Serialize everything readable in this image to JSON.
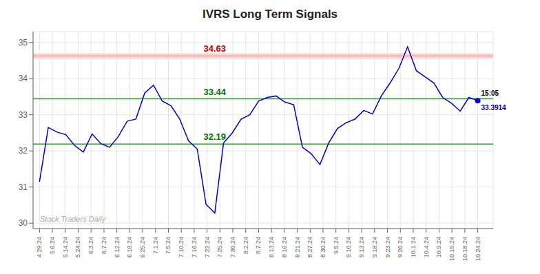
{
  "chart_data": {
    "type": "line",
    "title": "IVRS Long Term Signals",
    "x": [
      0,
      0.68,
      1.36,
      2.04,
      2.72,
      3.4,
      4.08,
      4.76,
      5.44,
      6.12,
      6.8,
      7.48,
      8.16,
      8.84,
      9.52,
      10.2,
      10.88,
      11.56,
      12.24,
      12.92,
      13.6,
      14.28,
      14.96,
      15.64,
      16.32,
      17,
      17.68,
      18.36,
      19.04,
      19.72,
      20.4,
      21.08,
      21.76,
      22.44,
      23.12,
      23.8,
      24.48,
      25.16,
      25.84,
      26.52,
      27.2,
      27.88,
      28.56,
      29.24,
      29.92,
      30.6,
      31.28,
      31.96,
      32.64,
      33.32,
      34
    ],
    "values": [
      31.15,
      32.65,
      32.52,
      32.45,
      32.15,
      31.97,
      32.47,
      32.2,
      32.1,
      32.4,
      32.82,
      32.88,
      33.6,
      33.82,
      33.38,
      33.25,
      32.88,
      32.28,
      32.05,
      30.52,
      30.28,
      32.22,
      32.5,
      32.88,
      33.0,
      33.38,
      33.48,
      33.52,
      33.35,
      33.28,
      32.1,
      31.92,
      31.62,
      32.22,
      32.62,
      32.78,
      32.88,
      33.12,
      33.02,
      33.52,
      33.88,
      34.28,
      34.88,
      34.22,
      34.05,
      33.88,
      33.48,
      33.32,
      33.1,
      33.48,
      33.3914
    ],
    "color": "#0000cc",
    "xlim": [
      -0.5,
      35.2
    ],
    "xticks": [
      {
        "value": 0,
        "label": "4.29.24"
      },
      {
        "value": 1,
        "label": "5.6.24"
      },
      {
        "value": 2,
        "label": "5.14.24"
      },
      {
        "value": 3,
        "label": "5.24.24"
      },
      {
        "value": 4,
        "label": "6.3.24"
      },
      {
        "value": 5,
        "label": "6.7.24"
      },
      {
        "value": 6,
        "label": "6.12.24"
      },
      {
        "value": 7,
        "label": "6.18.24"
      },
      {
        "value": 8,
        "label": "6.25.24"
      },
      {
        "value": 9,
        "label": "7.1.24"
      },
      {
        "value": 10,
        "label": "7.5.24"
      },
      {
        "value": 11,
        "label": "7.10.24"
      },
      {
        "value": 12,
        "label": "7.16.24"
      },
      {
        "value": 13,
        "label": "7.22.24"
      },
      {
        "value": 14,
        "label": "7.25.24"
      },
      {
        "value": 15,
        "label": "7.30.24"
      },
      {
        "value": 16,
        "label": "8.2.24"
      },
      {
        "value": 17,
        "label": "8.7.24"
      },
      {
        "value": 18,
        "label": "8.13.24"
      },
      {
        "value": 19,
        "label": "8.16.24"
      },
      {
        "value": 20,
        "label": "8.21.24"
      },
      {
        "value": 21,
        "label": "8.27.24"
      },
      {
        "value": 22,
        "label": "8.30.24"
      },
      {
        "value": 23,
        "label": "9.5.24"
      },
      {
        "value": 24,
        "label": "9.10.24"
      },
      {
        "value": 25,
        "label": "9.13.24"
      },
      {
        "value": 26,
        "label": "9.18.24"
      },
      {
        "value": 27,
        "label": "9.23.24"
      },
      {
        "value": 28,
        "label": "9.26.24"
      },
      {
        "value": 29,
        "label": "10.1.24"
      },
      {
        "value": 30,
        "label": "10.4.24"
      },
      {
        "value": 31,
        "label": "10.9.24"
      },
      {
        "value": 32,
        "label": "10.15.24"
      },
      {
        "value": 33,
        "label": "10.18.24"
      },
      {
        "value": 34,
        "label": "10.24.24"
      }
    ],
    "ylim": [
      29.85,
      35.3
    ],
    "yticks": [
      30,
      31,
      32,
      33,
      34,
      35
    ],
    "grid": true,
    "hlines": [
      {
        "value": 34.63,
        "label": "34.63",
        "color": "#ff8888",
        "band_color": "#ffcccc",
        "label_color": "#cc0000"
      },
      {
        "value": 33.44,
        "label": "33.44",
        "color": "#00bb00",
        "label_color": "#007700"
      },
      {
        "value": 32.19,
        "label": "32.19",
        "color": "#00bb00",
        "label_color": "#007700"
      }
    ],
    "last_point": {
      "value": 33.3914,
      "label": "33.3914",
      "time": "15:05"
    },
    "watermark": "Stock Traders Daily"
  }
}
